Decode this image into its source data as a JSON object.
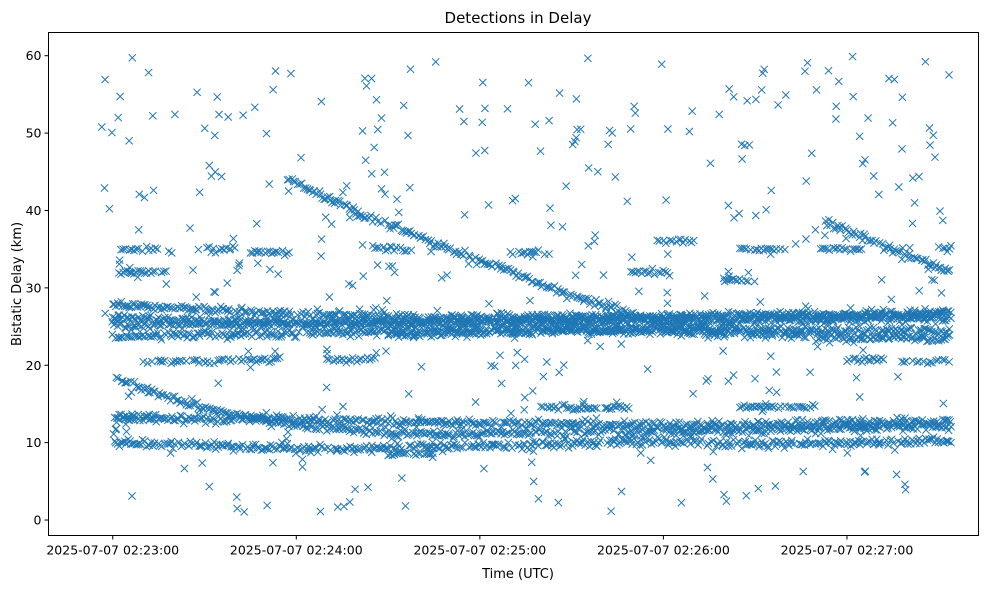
{
  "chart_data": {
    "type": "scatter",
    "title": "Detections in Delay",
    "xlabel": "Time (UTC)",
    "ylabel": "Bistatic Delay (km)",
    "marker": "x",
    "color": "#1f77b4",
    "x_unit": "seconds after 2025-07-07 02:22:00 UTC",
    "xlim": [
      39,
      343
    ],
    "ylim": [
      -2,
      63
    ],
    "x_ticks": [
      60,
      120,
      180,
      240,
      300
    ],
    "x_tick_labels": [
      "2025-07-07 02:23:00",
      "2025-07-07 02:24:00",
      "2025-07-07 02:25:00",
      "2025-07-07 02:26:00",
      "2025-07-07 02:27:00"
    ],
    "y_ticks": [
      0,
      10,
      20,
      30,
      40,
      50,
      60
    ],
    "y_tick_labels": [
      "0",
      "10",
      "20",
      "30",
      "40",
      "50",
      "60"
    ],
    "grid": false,
    "legend": "none",
    "tracks": [
      {
        "x": [
          60,
          85,
          100,
          120,
          150,
          180,
          210,
          240,
          270,
          300,
          334
        ],
        "y": [
          18.5,
          15,
          13.5,
          12.2,
          11.3,
          11.1,
          11.4,
          11.5,
          11.7,
          12,
          12
        ]
      },
      {
        "x": [
          60,
          120,
          180,
          240,
          300,
          334
        ],
        "y": [
          27.8,
          26.6,
          26.2,
          26.3,
          26.6,
          26.7
        ]
      },
      {
        "x": [
          60,
          120,
          180,
          240,
          300,
          334
        ],
        "y": [
          26.2,
          25.5,
          25.8,
          26.1,
          26.4,
          26.6
        ]
      },
      {
        "x": [
          60,
          120,
          180,
          240,
          300,
          334
        ],
        "y": [
          25.2,
          25.3,
          25.5,
          25.6,
          25.9,
          26
        ]
      },
      {
        "x": [
          60,
          120,
          180,
          240,
          300,
          334
        ],
        "y": [
          23.7,
          24.1,
          24.6,
          24.7,
          24.5,
          24.5
        ]
      },
      {
        "x": [
          150,
          180,
          210,
          240,
          270,
          300,
          334
        ],
        "y": [
          24,
          24.3,
          24.5,
          24.3,
          24,
          23.6,
          23.5
        ]
      },
      {
        "x": [
          60,
          120,
          180,
          210,
          240,
          270,
          300,
          334
        ],
        "y": [
          10,
          9.2,
          9.5,
          10,
          10.2,
          9.8,
          10,
          10.2
        ]
      },
      {
        "x": [
          117,
          140,
          160,
          180,
          200,
          240,
          260
        ],
        "y": [
          44.2,
          39.8,
          36.5,
          33.5,
          30.5,
          25.2,
          24.5
        ]
      },
      {
        "x": [
          293,
          334
        ],
        "y": [
          38.5,
          32
        ]
      },
      {
        "x": [
          60,
          120,
          150,
          180,
          210,
          240,
          270,
          300,
          334
        ],
        "y": [
          13,
          13,
          12.8,
          12.5,
          12.4,
          12.2,
          12.3,
          12.6,
          12.8
        ]
      }
    ],
    "clusters": [
      {
        "x": [
          62,
          75
        ],
        "y": 35
      },
      {
        "x": [
          88,
          100
        ],
        "y": 35
      },
      {
        "x": [
          105,
          118
        ],
        "y": 34.6
      },
      {
        "x": [
          62,
          78
        ],
        "y": 32
      },
      {
        "x": [
          95,
          115
        ],
        "y": 20.7
      },
      {
        "x": [
          70,
          95
        ],
        "y": 20.5
      },
      {
        "x": [
          130,
          145
        ],
        "y": 20.7
      },
      {
        "x": [
          145,
          158
        ],
        "y": 35
      },
      {
        "x": [
          190,
          203
        ],
        "y": 34.6
      },
      {
        "x": [
          228,
          242
        ],
        "y": 32
      },
      {
        "x": [
          290,
          305
        ],
        "y": 35
      },
      {
        "x": [
          300,
          312
        ],
        "y": 20.7
      },
      {
        "x": [
          318,
          334
        ],
        "y": 20.5
      },
      {
        "x": [
          260,
          270
        ],
        "y": 31
      },
      {
        "x": [
          265,
          280
        ],
        "y": 35
      },
      {
        "x": [
          238,
          250
        ],
        "y": 36
      },
      {
        "x": [
          330,
          334
        ],
        "y": 35
      },
      {
        "x": [
          60,
          75
        ],
        "y": 13.5
      },
      {
        "x": [
          300,
          310
        ],
        "y": 12
      },
      {
        "x": [
          265,
          290
        ],
        "y": 14.6
      },
      {
        "x": [
          150,
          165
        ],
        "y": 8.5
      },
      {
        "x": [
          200,
          230
        ],
        "y": 14.5
      }
    ],
    "noise_count": 420,
    "noise_ylim": [
      1,
      60
    ]
  }
}
